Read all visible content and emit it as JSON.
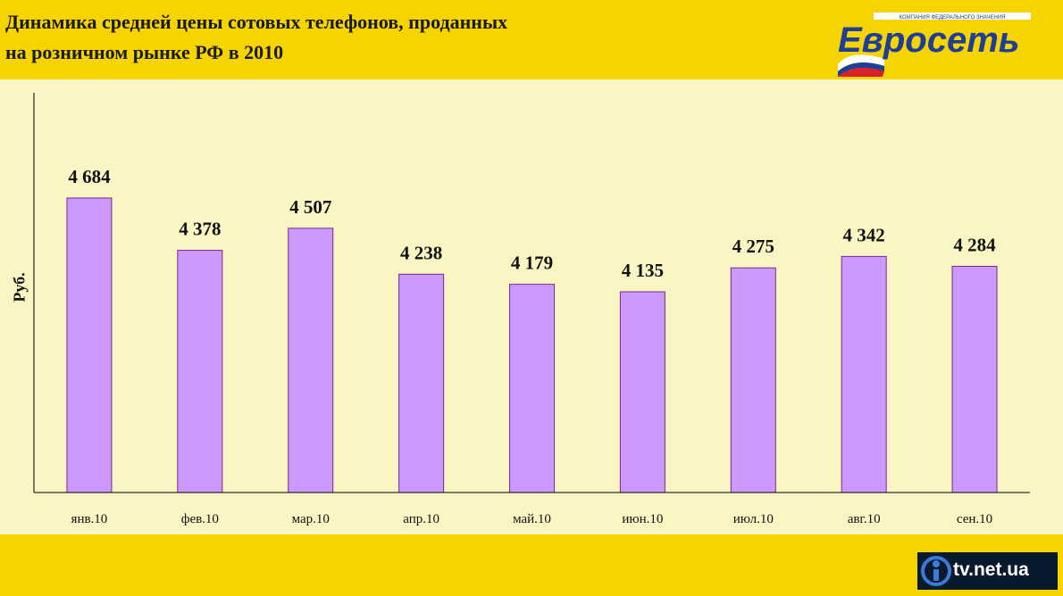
{
  "header": {
    "title_line1": "Динамика средней цены сотовых телефонов,  проданных",
    "title_line2": "на розничном рынке РФ в 2010"
  },
  "logo": {
    "name": "Евросеть",
    "tagline": "КОМПАНИЯ ФЕДЕРАЛЬНОГО ЗНАЧЕНИЯ"
  },
  "watermark": {
    "text": "tv.net.ua"
  },
  "colors": {
    "background": "#f6d400",
    "plot_area": "#f9f6c4",
    "bar_fill": "#cc99ff",
    "bar_stroke": "#7a2a8a",
    "logo_blue": "#1f3f97"
  },
  "chart_data": {
    "type": "bar",
    "categories": [
      "янв.10",
      "фев.10",
      "мар.10",
      "апр.10",
      "май.10",
      "июн.10",
      "июл.10",
      "авг.10",
      "сен.10"
    ],
    "values": [
      4684,
      4378,
      4507,
      4238,
      4179,
      4135,
      4275,
      4342,
      4284
    ],
    "value_labels": [
      "4 684",
      "4 378",
      "4 507",
      "4 238",
      "4 179",
      "4 135",
      "4 275",
      "4 342",
      "4 284"
    ],
    "title": "Динамика средней цены сотовых телефонов,  проданных на розничном рынке РФ в 2010",
    "xlabel": "",
    "ylabel": "Руб.",
    "ylim": [
      2960,
      5300
    ],
    "grid": false,
    "legend": "none"
  }
}
